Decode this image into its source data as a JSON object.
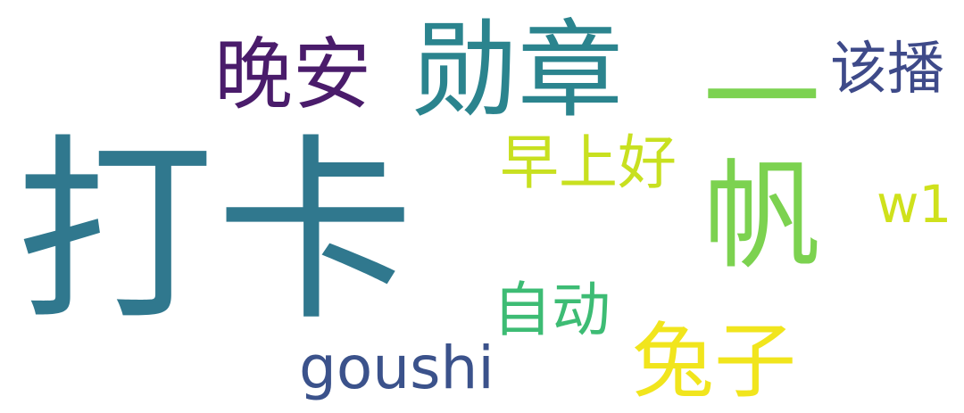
{
  "words": {
    "daka": {
      "text": "打卡",
      "color": "#30788e"
    },
    "xunzhang": {
      "text": "勋章",
      "color": "#2b848e"
    },
    "wanan": {
      "text": "晚安",
      "color": "#4a1c6b"
    },
    "yibo": {
      "text": "一帆",
      "color": "#7cd250"
    },
    "gaibo": {
      "text": "该播",
      "color": "#3e4a89"
    },
    "zaoshang": {
      "text": "早上好",
      "color": "#c8e020"
    },
    "w1": {
      "text": "w1",
      "color": "#cfe11c"
    },
    "zidong": {
      "text": "自动",
      "color": "#3dbc74"
    },
    "goushi": {
      "text": "goushi",
      "color": "#3b528b"
    },
    "tuzi": {
      "text": "兔子",
      "color": "#f1e51d"
    }
  }
}
